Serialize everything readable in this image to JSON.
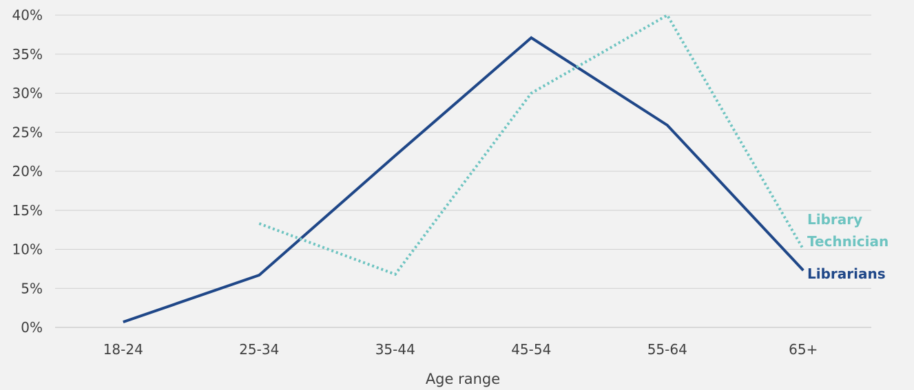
{
  "chart_data": {
    "type": "line",
    "xlabel": "Age range",
    "ylabel": "",
    "categories": [
      "18-24",
      "25-34",
      "35-44",
      "45-54",
      "55-64",
      "65+"
    ],
    "ylim": [
      0,
      0.4
    ],
    "y_ticks": [
      {
        "value": 0.0,
        "label": "0%"
      },
      {
        "value": 0.05,
        "label": "5%"
      },
      {
        "value": 0.1,
        "label": "10%"
      },
      {
        "value": 0.15,
        "label": "15%"
      },
      {
        "value": 0.2,
        "label": "20%"
      },
      {
        "value": 0.25,
        "label": "25%"
      },
      {
        "value": 0.3,
        "label": "30%"
      },
      {
        "value": 0.35,
        "label": "35%"
      },
      {
        "value": 0.4,
        "label": "40%"
      }
    ],
    "grid": true,
    "series": [
      {
        "name": "Librarians",
        "label_lines": [
          "Librarians"
        ],
        "color": "#1f4788",
        "line_style": "solid",
        "values": [
          0.007,
          0.067,
          0.22,
          0.371,
          0.259,
          0.073
        ]
      },
      {
        "name": "Library Technician",
        "label_lines": [
          "Library",
          "Technician"
        ],
        "color": "#6ec4c1",
        "line_style": "dotted",
        "values": [
          null,
          0.133,
          0.068,
          0.3,
          0.4,
          0.1
        ]
      }
    ]
  }
}
